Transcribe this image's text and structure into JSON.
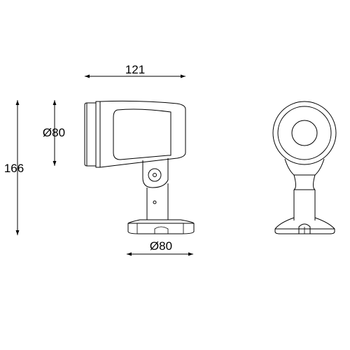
{
  "dimensions": {
    "overall_width": "121",
    "head_diameter": "Ø80",
    "total_height": "166",
    "base_diameter": "Ø80"
  },
  "colors": {
    "line": "#000000",
    "background": "#ffffff"
  }
}
